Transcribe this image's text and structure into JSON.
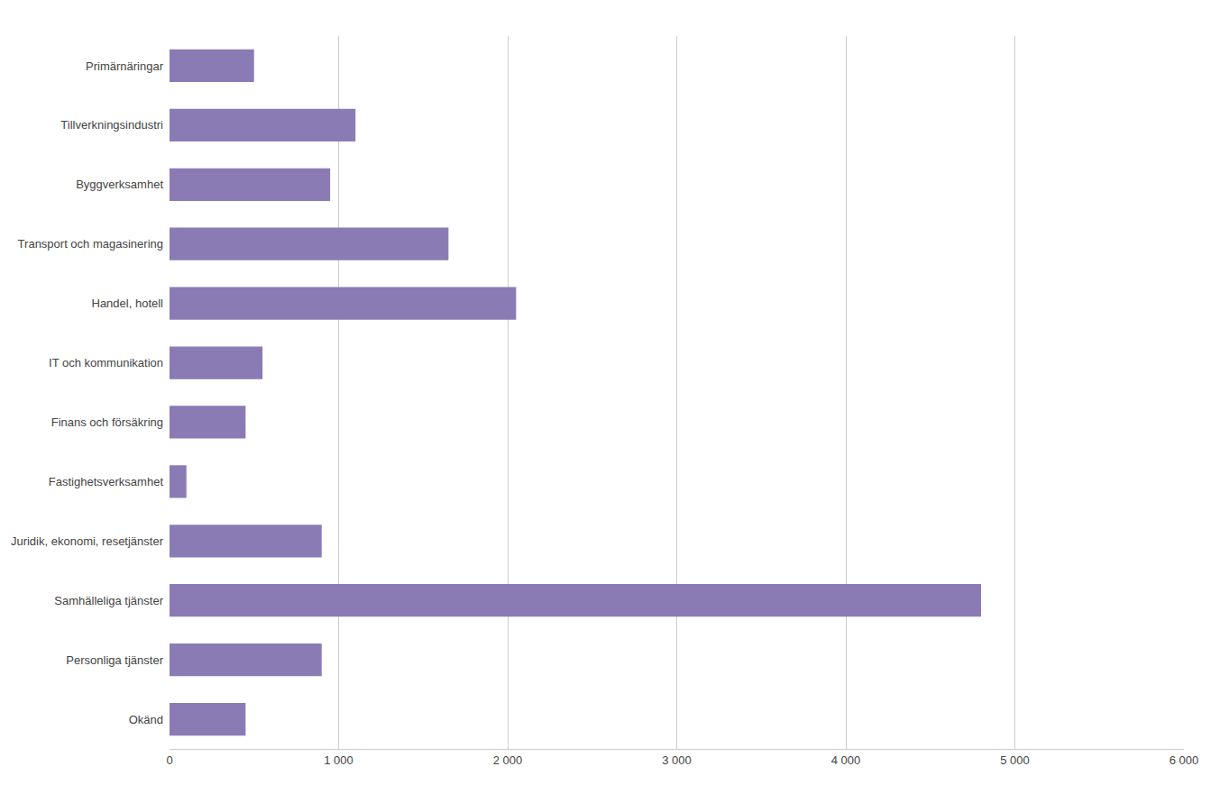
{
  "chart_data": {
    "type": "bar",
    "orientation": "horizontal",
    "categories": [
      "Okänd",
      "Personliga tjänster",
      "Samhälleliga tjänster",
      "Juridik, ekonomi, resetjänster",
      "Fastighetsverksamhet",
      "Finans och försäkring",
      "IT och kommunikation",
      "Handel, hotell",
      "Transport och magasinering",
      "Byggverksamhet",
      "Tillverkningsindustri",
      "Primärnäringar"
    ],
    "values": [
      450,
      900,
      4800,
      900,
      100,
      450,
      550,
      2050,
      1650,
      950,
      1100,
      500
    ],
    "color": "#8B7BB5",
    "xlim": [
      0,
      6000
    ],
    "xticks": [
      0,
      {
        "value": 1000,
        "label": "1 000"
      },
      {
        "value": 2000,
        "label": "2 000"
      },
      {
        "value": 3000,
        "label": "3 000"
      },
      {
        "value": 4000,
        "label": "4 000"
      },
      {
        "value": 5000,
        "label": "5 000"
      },
      {
        "value": 6000,
        "label": "6 000"
      }
    ],
    "grid": true
  }
}
